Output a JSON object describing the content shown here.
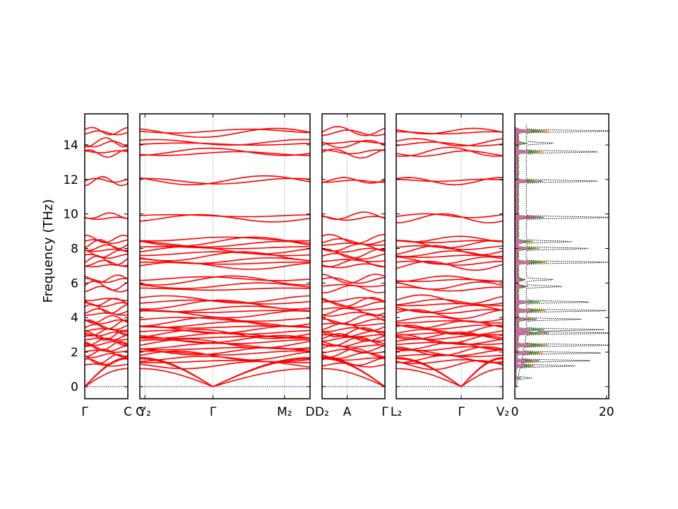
{
  "chart_data": {
    "type": "line",
    "ylabel": "Frequency (THz)",
    "ylim": [
      -0.7,
      15.8
    ],
    "yticks": [
      0,
      2,
      4,
      6,
      8,
      10,
      12,
      14
    ],
    "ytick_labels": [
      "0",
      "2",
      "4",
      "6",
      "8",
      "10",
      "12",
      "14"
    ],
    "band_color": "#ff0000",
    "zero_line_color": "#0000cc",
    "band_panels": [
      {
        "segments": [
          "Γ–C"
        ],
        "xticks": [
          "Γ",
          "C"
        ],
        "split": []
      },
      {
        "segments": [
          "C2–Y2",
          "Y2–Γ",
          "Γ–M2",
          "M2–D"
        ],
        "xticks": [
          "C",
          "Y₂",
          "Γ",
          "M₂",
          "D"
        ],
        "split": [
          0.03,
          0.43,
          0.85
        ]
      },
      {
        "segments": [
          "D2–A",
          "A–Γ"
        ],
        "xticks": [
          "D₂",
          "A",
          "Γ"
        ],
        "split": [
          0.4
        ]
      },
      {
        "segments": [
          "L2–Γ",
          "Γ–V2"
        ],
        "xticks": [
          "L₂",
          "Γ",
          "V₂"
        ],
        "split": [
          0.61
        ]
      }
    ],
    "acoustic_max_freq": [
      1.9,
      1.1,
      1.6
    ],
    "optical_band_freqs": [
      1.25,
      1.45,
      1.6,
      1.8,
      1.95,
      2.05,
      2.2,
      2.35,
      2.5,
      2.6,
      2.75,
      2.85,
      2.95,
      3.05,
      3.15,
      3.3,
      3.45,
      3.6,
      3.75,
      3.9,
      4.2,
      4.35,
      4.5,
      4.75,
      4.9,
      5.05,
      5.65,
      5.85,
      6.15,
      6.25,
      7.0,
      7.15,
      7.3,
      7.55,
      7.7,
      7.9,
      8.05,
      8.25,
      8.4,
      8.55,
      9.75,
      9.9,
      11.9,
      11.95,
      13.5,
      13.6,
      14.05,
      14.15,
      14.7,
      14.8
    ],
    "dos_panel": {
      "xlim": [
        0,
        20.5
      ],
      "xticks": [
        0,
        20
      ],
      "xtick_labels": [
        "0",
        "20"
      ],
      "total_dos_style": "black dotted",
      "total_dos_peaks": [
        {
          "freq": 14.8,
          "value": 20
        },
        {
          "freq": 14.1,
          "value": 6
        },
        {
          "freq": 13.6,
          "value": 16
        },
        {
          "freq": 11.9,
          "value": 16
        },
        {
          "freq": 9.8,
          "value": 20
        },
        {
          "freq": 8.4,
          "value": 10
        },
        {
          "freq": 8.0,
          "value": 14
        },
        {
          "freq": 7.2,
          "value": 19
        },
        {
          "freq": 6.2,
          "value": 6
        },
        {
          "freq": 5.8,
          "value": 8
        },
        {
          "freq": 4.9,
          "value": 14
        },
        {
          "freq": 4.4,
          "value": 18
        },
        {
          "freq": 3.9,
          "value": 12
        },
        {
          "freq": 3.3,
          "value": 17
        },
        {
          "freq": 3.1,
          "value": 20
        },
        {
          "freq": 2.4,
          "value": 20
        },
        {
          "freq": 1.95,
          "value": 17
        },
        {
          "freq": 1.5,
          "value": 15
        },
        {
          "freq": 1.2,
          "value": 12
        },
        {
          "freq": 0.5,
          "value": 3
        }
      ],
      "partial_dos_colors": [
        "#1f77b4",
        "#ff7f0e",
        "#2ca02c",
        "#d62728",
        "#9467bd",
        "#8c564b",
        "#e377c2"
      ]
    }
  }
}
